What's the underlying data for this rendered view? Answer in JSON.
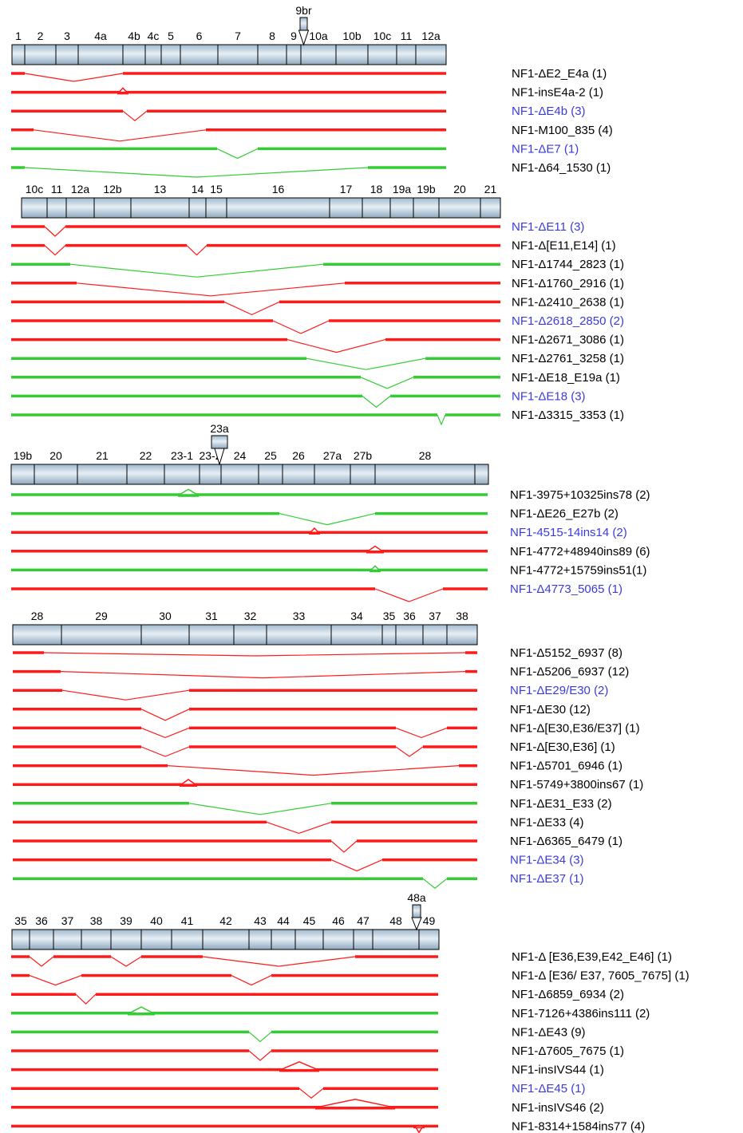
{
  "colors": {
    "red": "#ff1a1a",
    "green": "#33cc33",
    "label_black": "#000000",
    "label_blue": "#3b3bdb",
    "exon_fill_light": "#dfe9f2",
    "exon_fill_dark": "#9fb8cd",
    "exon_stroke": "#000000"
  },
  "panels": [
    {
      "exons": [
        {
          "label": "1",
          "x": 15,
          "w": 16
        },
        {
          "label": "2",
          "x": 31,
          "w": 39
        },
        {
          "label": "3",
          "x": 70,
          "w": 28
        },
        {
          "label": "4a",
          "x": 98,
          "w": 56
        },
        {
          "label": "4b",
          "x": 154,
          "w": 28
        },
        {
          "label": "4c",
          "x": 182,
          "w": 20
        },
        {
          "label": "5",
          "x": 202,
          "w": 24
        },
        {
          "label": "6",
          "x": 226,
          "w": 47
        },
        {
          "label": "7",
          "x": 273,
          "w": 50
        },
        {
          "label": "8",
          "x": 323,
          "w": 36
        },
        {
          "label": "9",
          "x": 359,
          "w": 18
        },
        {
          "label": "10a",
          "x": 377,
          "w": 44
        },
        {
          "label": "10b",
          "x": 421,
          "w": 40
        },
        {
          "label": "10c",
          "x": 461,
          "w": 36
        },
        {
          "label": "11",
          "x": 497,
          "w": 24
        },
        {
          "label": "12a",
          "x": 521,
          "w": 38
        }
      ],
      "insert_exons": [
        {
          "label": "9br",
          "x": 376,
          "w": 9
        }
      ],
      "transcripts": [
        {
          "name": "NF1-ΔE2_E4a (1)",
          "color": "red",
          "label_color": "black",
          "event": {
            "type": "skip",
            "from": 31,
            "to": 154,
            "depth": 10
          }
        },
        {
          "name": "NF1-insE4a-2 (1)",
          "color": "red",
          "label_color": "black",
          "event": {
            "type": "ins",
            "at": 154,
            "w": 10
          }
        },
        {
          "name": "NF1-ΔE4b (3)",
          "color": "red",
          "label_color": "blue",
          "event": {
            "type": "skip",
            "from": 154,
            "to": 184,
            "depth": 12
          }
        },
        {
          "name": "NF1-Μ100_835 (4)",
          "color": "red",
          "label_color": "black",
          "event": {
            "type": "skip",
            "from": 42,
            "to": 258,
            "depth": 14
          }
        },
        {
          "name": "NF1-ΔE7 (1)",
          "color": "green",
          "label_color": "blue",
          "event": {
            "type": "skip",
            "from": 272,
            "to": 323,
            "depth": 12
          }
        },
        {
          "name": "NF1-Δ64_1530 (1)",
          "color": "green",
          "label_color": "black",
          "event": {
            "type": "skip",
            "from": 31,
            "to": 461,
            "depth": 12
          }
        }
      ]
    },
    {
      "exons": [
        {
          "label": "10c",
          "x": 27,
          "w": 32
        },
        {
          "label": "11",
          "x": 59,
          "w": 24
        },
        {
          "label": "12a",
          "x": 83,
          "w": 35
        },
        {
          "label": "12b",
          "x": 118,
          "w": 46
        },
        {
          "label": "13",
          "x": 164,
          "w": 73
        },
        {
          "label": "14",
          "x": 237,
          "w": 21
        },
        {
          "label": "15",
          "x": 258,
          "w": 26
        },
        {
          "label": "16",
          "x": 284,
          "w": 129
        },
        {
          "label": "17",
          "x": 413,
          "w": 41
        },
        {
          "label": "18",
          "x": 454,
          "w": 35
        },
        {
          "label": "19a",
          "x": 489,
          "w": 29
        },
        {
          "label": "19b",
          "x": 518,
          "w": 32
        },
        {
          "label": "20",
          "x": 550,
          "w": 52
        },
        {
          "label": "21",
          "x": 602,
          "w": 25
        }
      ],
      "insert_exons": [],
      "transcripts": [
        {
          "name": "NF1-ΔE11 (3)",
          "color": "red",
          "label_color": "blue",
          "event": {
            "type": "skip",
            "from": 56,
            "to": 82,
            "depth": 12
          }
        },
        {
          "name": "NF1-Δ[E11,E14] (1)",
          "color": "red",
          "label_color": "black",
          "event": {
            "type": "skip2",
            "from": 56,
            "to": 82,
            "from2": 234,
            "to2": 259,
            "depth": 12
          }
        },
        {
          "name": "NF1-Δ1744_2823 (1)",
          "color": "green",
          "label_color": "black",
          "event": {
            "type": "skip",
            "from": 88,
            "to": 405,
            "depth": 16
          }
        },
        {
          "name": "NF1-Δ1760_2916 (1)",
          "color": "red",
          "label_color": "black",
          "event": {
            "type": "skip",
            "from": 96,
            "to": 432,
            "depth": 16
          }
        },
        {
          "name": "NF1-Δ2410_2638 (1)",
          "color": "red",
          "label_color": "black",
          "event": {
            "type": "skip",
            "from": 281,
            "to": 350,
            "depth": 16
          }
        },
        {
          "name": "NF1-Δ2618_2850 (2)",
          "color": "red",
          "label_color": "blue",
          "event": {
            "type": "skip",
            "from": 342,
            "to": 412,
            "depth": 16
          }
        },
        {
          "name": "NF1-Δ2671_3086 (1)",
          "color": "red",
          "label_color": "black",
          "event": {
            "type": "skip",
            "from": 360,
            "to": 483,
            "depth": 16
          }
        },
        {
          "name": "NF1-Δ2761_3258 (1)",
          "color": "green",
          "label_color": "black",
          "event": {
            "type": "skip",
            "from": 384,
            "to": 533,
            "depth": 14
          }
        },
        {
          "name": "NF1-ΔE18_E19a (1)",
          "color": "green",
          "label_color": "black",
          "event": {
            "type": "skip",
            "from": 452,
            "to": 518,
            "depth": 14
          }
        },
        {
          "name": "NF1-ΔE18 (3)",
          "color": "green",
          "label_color": "blue",
          "event": {
            "type": "skip",
            "from": 454,
            "to": 489,
            "depth": 14
          }
        },
        {
          "name": "NF1-Δ3315_3353 (1)",
          "color": "green",
          "label_color": "black",
          "event": {
            "type": "skip",
            "from": 548,
            "to": 558,
            "depth": 12
          }
        }
      ]
    },
    {
      "exons": [
        {
          "label": "19b",
          "x": 14,
          "w": 29
        },
        {
          "label": "20",
          "x": 43,
          "w": 54
        },
        {
          "label": "21",
          "x": 97,
          "w": 62
        },
        {
          "label": "22",
          "x": 159,
          "w": 47
        },
        {
          "label": "23-1",
          "x": 206,
          "w": 44
        },
        {
          "label": "23-2",
          "x": 250,
          "w": 27
        },
        {
          "label": "24",
          "x": 277,
          "w": 47
        },
        {
          "label": "25",
          "x": 324,
          "w": 30
        },
        {
          "label": "26",
          "x": 354,
          "w": 40
        },
        {
          "label": "27a",
          "x": 394,
          "w": 45
        },
        {
          "label": "27b",
          "x": 439,
          "w": 31
        },
        {
          "label": "28",
          "x": 470,
          "w": 125
        }
      ],
      "tail": {
        "x": 595,
        "w": 17
      },
      "insert_exons": [
        {
          "label": "23a",
          "x": 265,
          "w": 20
        }
      ],
      "transcripts": [
        {
          "name": "NF1-3975+10325ins78 (2)",
          "color": "green",
          "label_color": "black",
          "event": {
            "type": "ins",
            "at": 236,
            "w": 22
          }
        },
        {
          "name": "NF1-ΔE26_E27b (2)",
          "color": "green",
          "label_color": "black",
          "event": {
            "type": "skip",
            "from": 350,
            "to": 470,
            "depth": 14
          }
        },
        {
          "name": "NF1-4515-14ins14 (2)",
          "color": "red",
          "label_color": "blue",
          "event": {
            "type": "ins",
            "at": 394,
            "w": 10
          }
        },
        {
          "name": "NF1-4772+48940ins89 (6)",
          "color": "red",
          "label_color": "black",
          "event": {
            "type": "ins",
            "at": 470,
            "w": 18
          }
        },
        {
          "name": "NF1-4772+15759ins51(1)",
          "color": "green",
          "label_color": "black",
          "event": {
            "type": "ins",
            "at": 470,
            "w": 10
          }
        },
        {
          "name": "NF1-Δ4773_5065 (1)",
          "color": "red",
          "label_color": "blue",
          "event": {
            "type": "skip",
            "from": 470,
            "to": 555,
            "depth": 16
          }
        }
      ]
    },
    {
      "exons": [
        {
          "label": "28",
          "x": 16,
          "w": 61
        },
        {
          "label": "29",
          "x": 77,
          "w": 100
        },
        {
          "label": "30",
          "x": 177,
          "w": 60
        },
        {
          "label": "31",
          "x": 237,
          "w": 56
        },
        {
          "label": "32",
          "x": 293,
          "w": 41
        },
        {
          "label": "33",
          "x": 334,
          "w": 81
        },
        {
          "label": "34",
          "x": 415,
          "w": 64
        },
        {
          "label": "35",
          "x": 479,
          "w": 17
        },
        {
          "label": "36",
          "x": 496,
          "w": 34
        },
        {
          "label": "37",
          "x": 530,
          "w": 30
        },
        {
          "label": "38",
          "x": 560,
          "w": 38
        }
      ],
      "insert_exons": [],
      "transcripts": [
        {
          "name": "NF1-Δ5152_6937 (8)",
          "color": "red",
          "label_color": "black",
          "event": {
            "type": "skip",
            "from": 55,
            "to": 583,
            "depth": 4
          }
        },
        {
          "name": "NF1-Δ5206_6937 (12)",
          "color": "red",
          "label_color": "black",
          "event": {
            "type": "skip",
            "from": 76,
            "to": 583,
            "depth": 8
          }
        },
        {
          "name": "NF1-ΔE29/E30 (2)",
          "color": "red",
          "label_color": "blue",
          "event": {
            "type": "skip",
            "from": 78,
            "to": 237,
            "depth": 12
          }
        },
        {
          "name": "NF1-ΔE30 (12)",
          "color": "red",
          "label_color": "black",
          "event": {
            "type": "skip",
            "from": 177,
            "to": 237,
            "depth": 14
          }
        },
        {
          "name": "NF1-Δ[E30,E36/E37] (1)",
          "color": "red",
          "label_color": "black",
          "event": {
            "type": "skip2",
            "from": 177,
            "to": 237,
            "from2": 496,
            "to2": 560,
            "depth": 12
          }
        },
        {
          "name": "NF1-Δ[E30,E36] (1)",
          "color": "red",
          "label_color": "black",
          "event": {
            "type": "skip2",
            "from": 177,
            "to": 237,
            "from2": 496,
            "to2": 530,
            "depth": 12
          }
        },
        {
          "name": "NF1-Δ5701_6946 (1)",
          "color": "red",
          "label_color": "black",
          "event": {
            "type": "skip",
            "from": 210,
            "to": 575,
            "depth": 12
          }
        },
        {
          "name": "NF1-5749+3800ins67 (1)",
          "color": "red",
          "label_color": "black",
          "event": {
            "type": "ins",
            "at": 236,
            "w": 18
          }
        },
        {
          "name": "NF1-ΔE31_E33 (2)",
          "color": "green",
          "label_color": "black",
          "event": {
            "type": "skip",
            "from": 237,
            "to": 415,
            "depth": 14
          }
        },
        {
          "name": "NF1-ΔE33 (4)",
          "color": "red",
          "label_color": "black",
          "event": {
            "type": "skip",
            "from": 334,
            "to": 415,
            "depth": 14
          }
        },
        {
          "name": "NF1-Δ6365_6479 (1)",
          "color": "red",
          "label_color": "black",
          "event": {
            "type": "skip",
            "from": 415,
            "to": 447,
            "depth": 14
          }
        },
        {
          "name": "NF1-ΔE34 (3)",
          "color": "red",
          "label_color": "blue",
          "event": {
            "type": "skip",
            "from": 415,
            "to": 479,
            "depth": 14
          }
        },
        {
          "name": "NF1-ΔE37 (1)",
          "color": "green",
          "label_color": "blue",
          "event": {
            "type": "skip",
            "from": 530,
            "to": 560,
            "depth": 12
          }
        }
      ]
    },
    {
      "exons": [
        {
          "label": "35",
          "x": 15,
          "w": 22
        },
        {
          "label": "36",
          "x": 37,
          "w": 30
        },
        {
          "label": "37",
          "x": 67,
          "w": 35
        },
        {
          "label": "38",
          "x": 102,
          "w": 37
        },
        {
          "label": "39",
          "x": 139,
          "w": 38
        },
        {
          "label": "40",
          "x": 177,
          "w": 38
        },
        {
          "label": "41",
          "x": 215,
          "w": 39
        },
        {
          "label": "42",
          "x": 254,
          "w": 58
        },
        {
          "label": "43",
          "x": 312,
          "w": 28
        },
        {
          "label": "44",
          "x": 340,
          "w": 30
        },
        {
          "label": "45",
          "x": 370,
          "w": 35
        },
        {
          "label": "46",
          "x": 405,
          "w": 38
        },
        {
          "label": "47",
          "x": 443,
          "w": 24
        },
        {
          "label": "48",
          "x": 467,
          "w": 58
        },
        {
          "label": "49",
          "x": 525,
          "w": 25
        }
      ],
      "insert_exons": [
        {
          "label": "48a",
          "x": 517,
          "w": 10
        }
      ],
      "transcripts": [
        {
          "name": "NF1-Δ [E36,E39,E42_E46] (1)",
          "color": "red",
          "label_color": "black",
          "event": {
            "type": "multi",
            "skips": [
              [
                37,
                67
              ],
              [
                139,
                177
              ],
              [
                254,
                445
              ]
            ],
            "depth": 12
          }
        },
        {
          "name": "NF1-Δ [E36/ E37, 7605_7675] (1)",
          "color": "red",
          "label_color": "black",
          "event": {
            "type": "multi",
            "skips": [
              [
                37,
                102
              ],
              [
                290,
                340
              ]
            ],
            "depth": 12
          }
        },
        {
          "name": "NF1-Δ6859_6934 (2)",
          "color": "red",
          "label_color": "black",
          "event": {
            "type": "skip",
            "from": 95,
            "to": 120,
            "depth": 12
          }
        },
        {
          "name": "NF1-7126+4386ins111 (2)",
          "color": "green",
          "label_color": "black",
          "event": {
            "type": "ins",
            "at": 177,
            "w": 30
          }
        },
        {
          "name": "NF1-ΔE43 (9)",
          "color": "green",
          "label_color": "black",
          "event": {
            "type": "skip",
            "from": 312,
            "to": 340,
            "depth": 12
          }
        },
        {
          "name": "NF1-Δ7605_7675 (1)",
          "color": "red",
          "label_color": "black",
          "event": {
            "type": "skip",
            "from": 312,
            "to": 340,
            "depth": 12
          }
        },
        {
          "name": "NF1-insIVS44 (1)",
          "color": "red",
          "label_color": "black",
          "event": {
            "type": "ins",
            "at": 375,
            "w": 46
          }
        },
        {
          "name": "NF1-ΔE45 (1)",
          "color": "red",
          "label_color": "blue",
          "event": {
            "type": "skip",
            "from": 375,
            "to": 405,
            "depth": 12
          }
        },
        {
          "name": "NF1-insIVS46 (2)",
          "color": "red",
          "label_color": "black",
          "event": {
            "type": "ins",
            "at": 445,
            "w": 96
          }
        },
        {
          "name": "NF1-8314+1584ins77 (4)",
          "color": "red",
          "label_color": "black",
          "event": {
            "type": "ins_down",
            "at": 525,
            "w": 10
          }
        }
      ]
    }
  ]
}
